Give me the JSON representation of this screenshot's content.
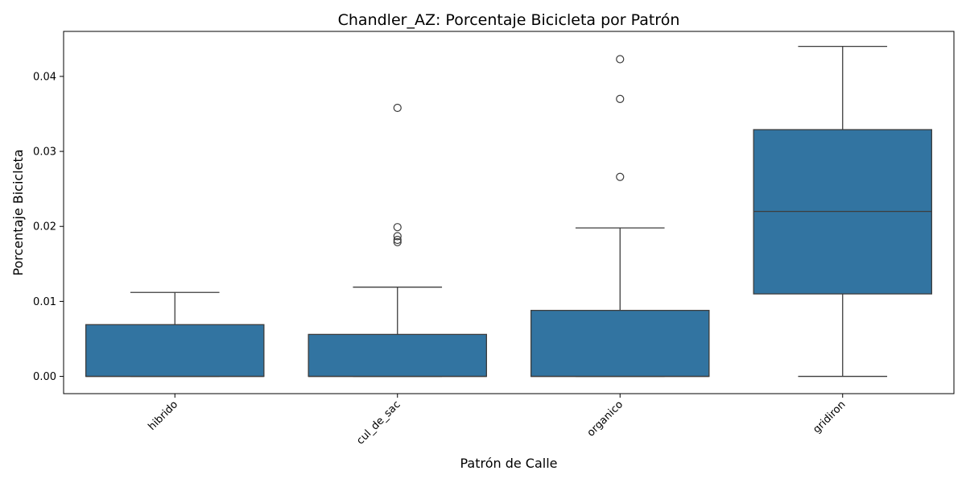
{
  "chart_data": {
    "type": "box",
    "title": "Chandler_AZ: Porcentaje Bicicleta por Patrón",
    "xlabel": "Patrón de Calle",
    "ylabel": "Porcentaje Bicicleta",
    "ylim": [
      -0.0023,
      0.046
    ],
    "yticks": [
      0.0,
      0.01,
      0.02,
      0.03,
      0.04
    ],
    "ytick_labels": [
      "0.00",
      "0.01",
      "0.02",
      "0.03",
      "0.04"
    ],
    "categories": [
      "hibrido",
      "cul_de_sac",
      "organico",
      "gridiron"
    ],
    "grid": false,
    "colors": {
      "box_fill": "#3274a1",
      "line": "#3d3d3d"
    },
    "boxes": [
      {
        "category": "hibrido",
        "whisker_low": 0.0,
        "q1": 0.0,
        "median": 0.0,
        "q3": 0.0069,
        "whisker_high": 0.0112,
        "outliers": []
      },
      {
        "category": "cul_de_sac",
        "whisker_low": 0.0,
        "q1": 0.0,
        "median": 0.0,
        "q3": 0.0056,
        "whisker_high": 0.0119,
        "outliers": [
          0.0358,
          0.0199,
          0.0187,
          0.0182,
          0.0179
        ]
      },
      {
        "category": "organico",
        "whisker_low": 0.0,
        "q1": 0.0,
        "median": 0.0,
        "q3": 0.0088,
        "whisker_high": 0.0198,
        "outliers": [
          0.0423,
          0.037,
          0.0266
        ]
      },
      {
        "category": "gridiron",
        "whisker_low": 0.0,
        "q1": 0.011,
        "median": 0.022,
        "q3": 0.0329,
        "whisker_high": 0.044,
        "outliers": []
      }
    ]
  }
}
